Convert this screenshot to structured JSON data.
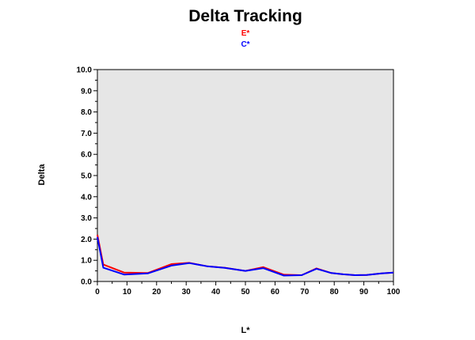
{
  "chart_data": {
    "type": "line",
    "title": "Delta Tracking",
    "xlabel": "L*",
    "ylabel": "Delta",
    "xlim": [
      0,
      100
    ],
    "ylim": [
      0,
      10
    ],
    "x_ticks": [
      0,
      10,
      20,
      30,
      40,
      50,
      60,
      70,
      80,
      90,
      100
    ],
    "y_ticks": [
      "0.0",
      "1.0",
      "2.0",
      "3.0",
      "4.0",
      "5.0",
      "6.0",
      "7.0",
      "8.0",
      "9.0",
      "10.0"
    ],
    "grid": false,
    "plot_background": "#e6e6e6",
    "legend_position": "top-center",
    "series": [
      {
        "name": "E*",
        "color": "#ff0000",
        "x": [
          0,
          2,
          9,
          17,
          25,
          31,
          37,
          43,
          50,
          56,
          63,
          69,
          74,
          79,
          83,
          87,
          91,
          96,
          100
        ],
        "y": [
          2.2,
          0.8,
          0.42,
          0.4,
          0.82,
          0.88,
          0.72,
          0.65,
          0.5,
          0.68,
          0.32,
          0.3,
          0.62,
          0.4,
          0.34,
          0.3,
          0.31,
          0.38,
          0.42
        ]
      },
      {
        "name": "C*",
        "color": "#0000ff",
        "x": [
          0,
          2,
          9,
          17,
          25,
          31,
          37,
          43,
          50,
          56,
          63,
          69,
          74,
          79,
          83,
          87,
          91,
          96,
          100
        ],
        "y": [
          2.1,
          0.65,
          0.33,
          0.38,
          0.75,
          0.87,
          0.72,
          0.64,
          0.5,
          0.63,
          0.28,
          0.3,
          0.6,
          0.4,
          0.34,
          0.3,
          0.31,
          0.38,
          0.42
        ]
      }
    ]
  }
}
